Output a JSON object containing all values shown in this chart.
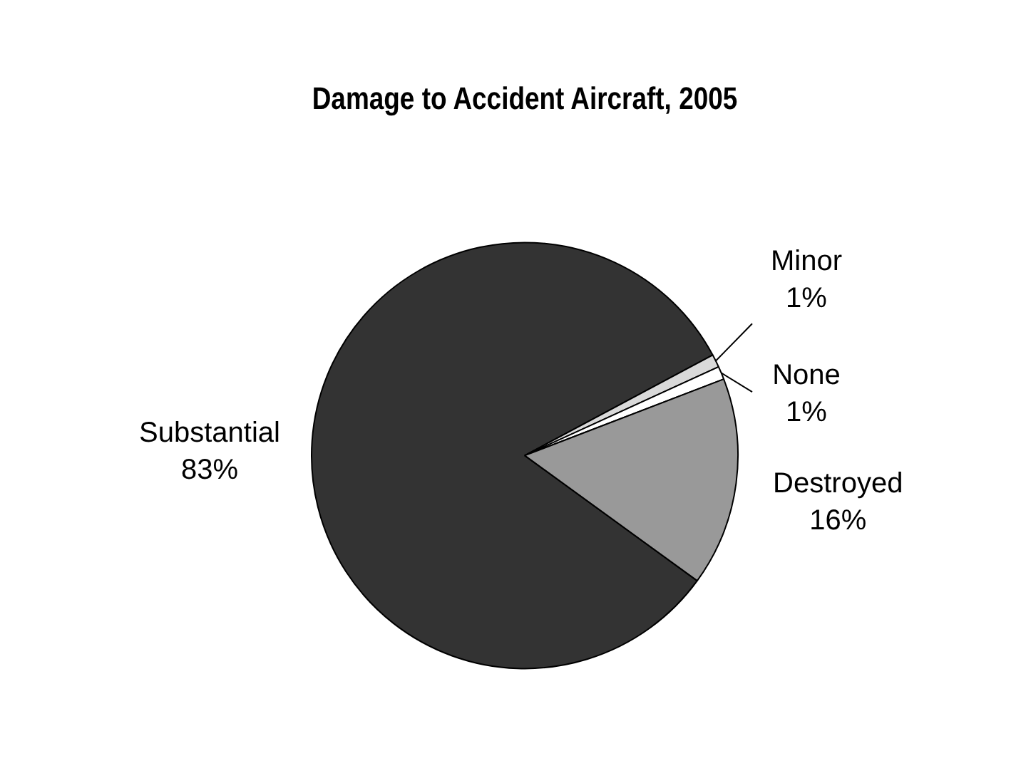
{
  "chart_data": {
    "type": "pie",
    "title": "Damage to Accident Aircraft, 2005",
    "categories": [
      "Substantial",
      "Minor",
      "None",
      "Destroyed"
    ],
    "values": [
      83,
      1,
      1,
      16
    ],
    "colors": [
      "#333333",
      "#d9d9d9",
      "#ffffff",
      "#999999"
    ],
    "value_labels": [
      "83%",
      "1%",
      "1%",
      "16%"
    ],
    "legend": false
  }
}
